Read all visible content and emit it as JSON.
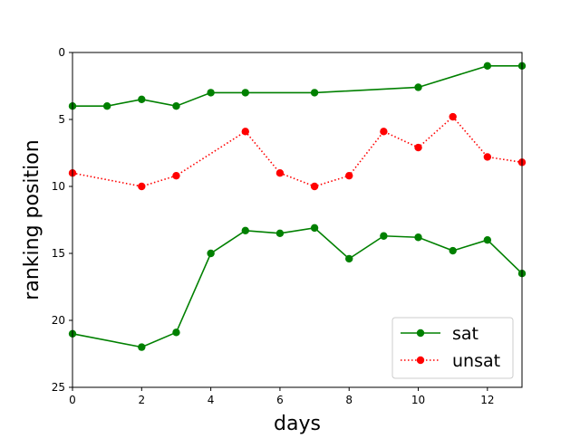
{
  "chart_data": {
    "type": "line",
    "title": "",
    "xlabel": "days",
    "ylabel": "ranking position",
    "xlim": [
      0,
      13
    ],
    "ylim": [
      0,
      25
    ],
    "y_inverted": true,
    "grid": false,
    "legend_placement": "lower-right",
    "x_ticks": [
      0,
      2,
      4,
      6,
      8,
      10,
      12
    ],
    "y_ticks": [
      0,
      5,
      10,
      15,
      20,
      25
    ],
    "series": [
      {
        "name": "sat",
        "color": "#008000",
        "line_style": "solid",
        "points": [
          [
            0,
            4
          ],
          [
            1,
            4
          ],
          [
            2,
            3.5
          ],
          [
            3,
            4
          ],
          [
            4,
            3
          ],
          [
            5,
            3
          ],
          [
            7,
            3
          ],
          [
            10,
            2.6
          ],
          [
            12,
            1
          ],
          [
            13,
            1
          ]
        ]
      },
      {
        "name": "unsat",
        "color": "#ff0000",
        "line_style": "dotted",
        "points": [
          [
            0,
            9
          ],
          [
            2,
            10
          ],
          [
            3,
            9.2
          ],
          [
            5,
            5.9
          ],
          [
            6,
            9
          ],
          [
            7,
            10
          ],
          [
            8,
            9.2
          ],
          [
            9,
            5.9
          ],
          [
            10,
            7.1
          ],
          [
            11,
            4.8
          ],
          [
            12,
            7.8
          ],
          [
            13,
            8.2
          ]
        ]
      },
      {
        "name": "",
        "color": "#008000",
        "line_style": "solid",
        "points": [
          [
            0,
            21
          ],
          [
            2,
            22
          ],
          [
            3,
            20.9
          ],
          [
            4,
            15
          ],
          [
            5,
            13.3
          ],
          [
            6,
            13.5
          ],
          [
            7,
            13.1
          ],
          [
            8,
            15.4
          ],
          [
            9,
            13.7
          ],
          [
            10,
            13.8
          ],
          [
            11,
            14.8
          ],
          [
            12,
            14
          ],
          [
            13,
            16.5
          ]
        ]
      }
    ]
  }
}
